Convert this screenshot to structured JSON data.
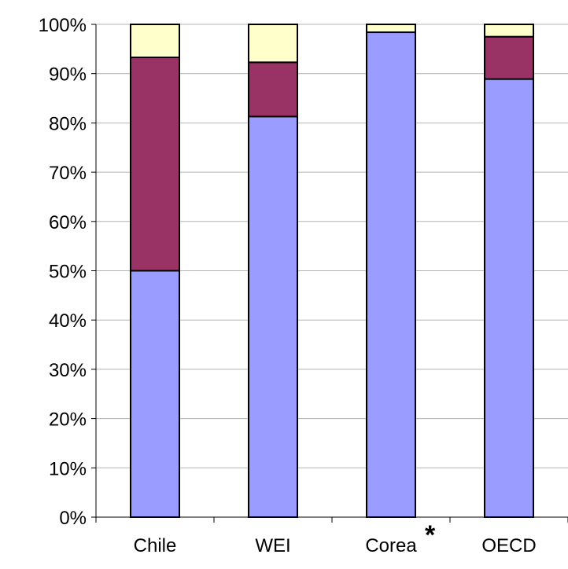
{
  "chart_data": {
    "type": "bar",
    "stacked": true,
    "grid": true,
    "categories": [
      "Chile",
      "WEI",
      "Corea",
      "OECD"
    ],
    "annotations": [
      {
        "category": "Corea",
        "text": "*"
      }
    ],
    "series": [
      {
        "color": "#9b9cff",
        "values": [
          50.0,
          81.3,
          98.4,
          88.9
        ]
      },
      {
        "color": "#993366",
        "values": [
          43.3,
          11.0,
          0.0,
          8.6
        ]
      },
      {
        "color": "#ffffcc",
        "values": [
          6.7,
          7.7,
          1.6,
          2.5
        ]
      }
    ],
    "yticks": [
      "0%",
      "10%",
      "20%",
      "30%",
      "40%",
      "50%",
      "60%",
      "70%",
      "80%",
      "90%",
      "100%"
    ],
    "ylim": [
      0,
      100
    ]
  }
}
